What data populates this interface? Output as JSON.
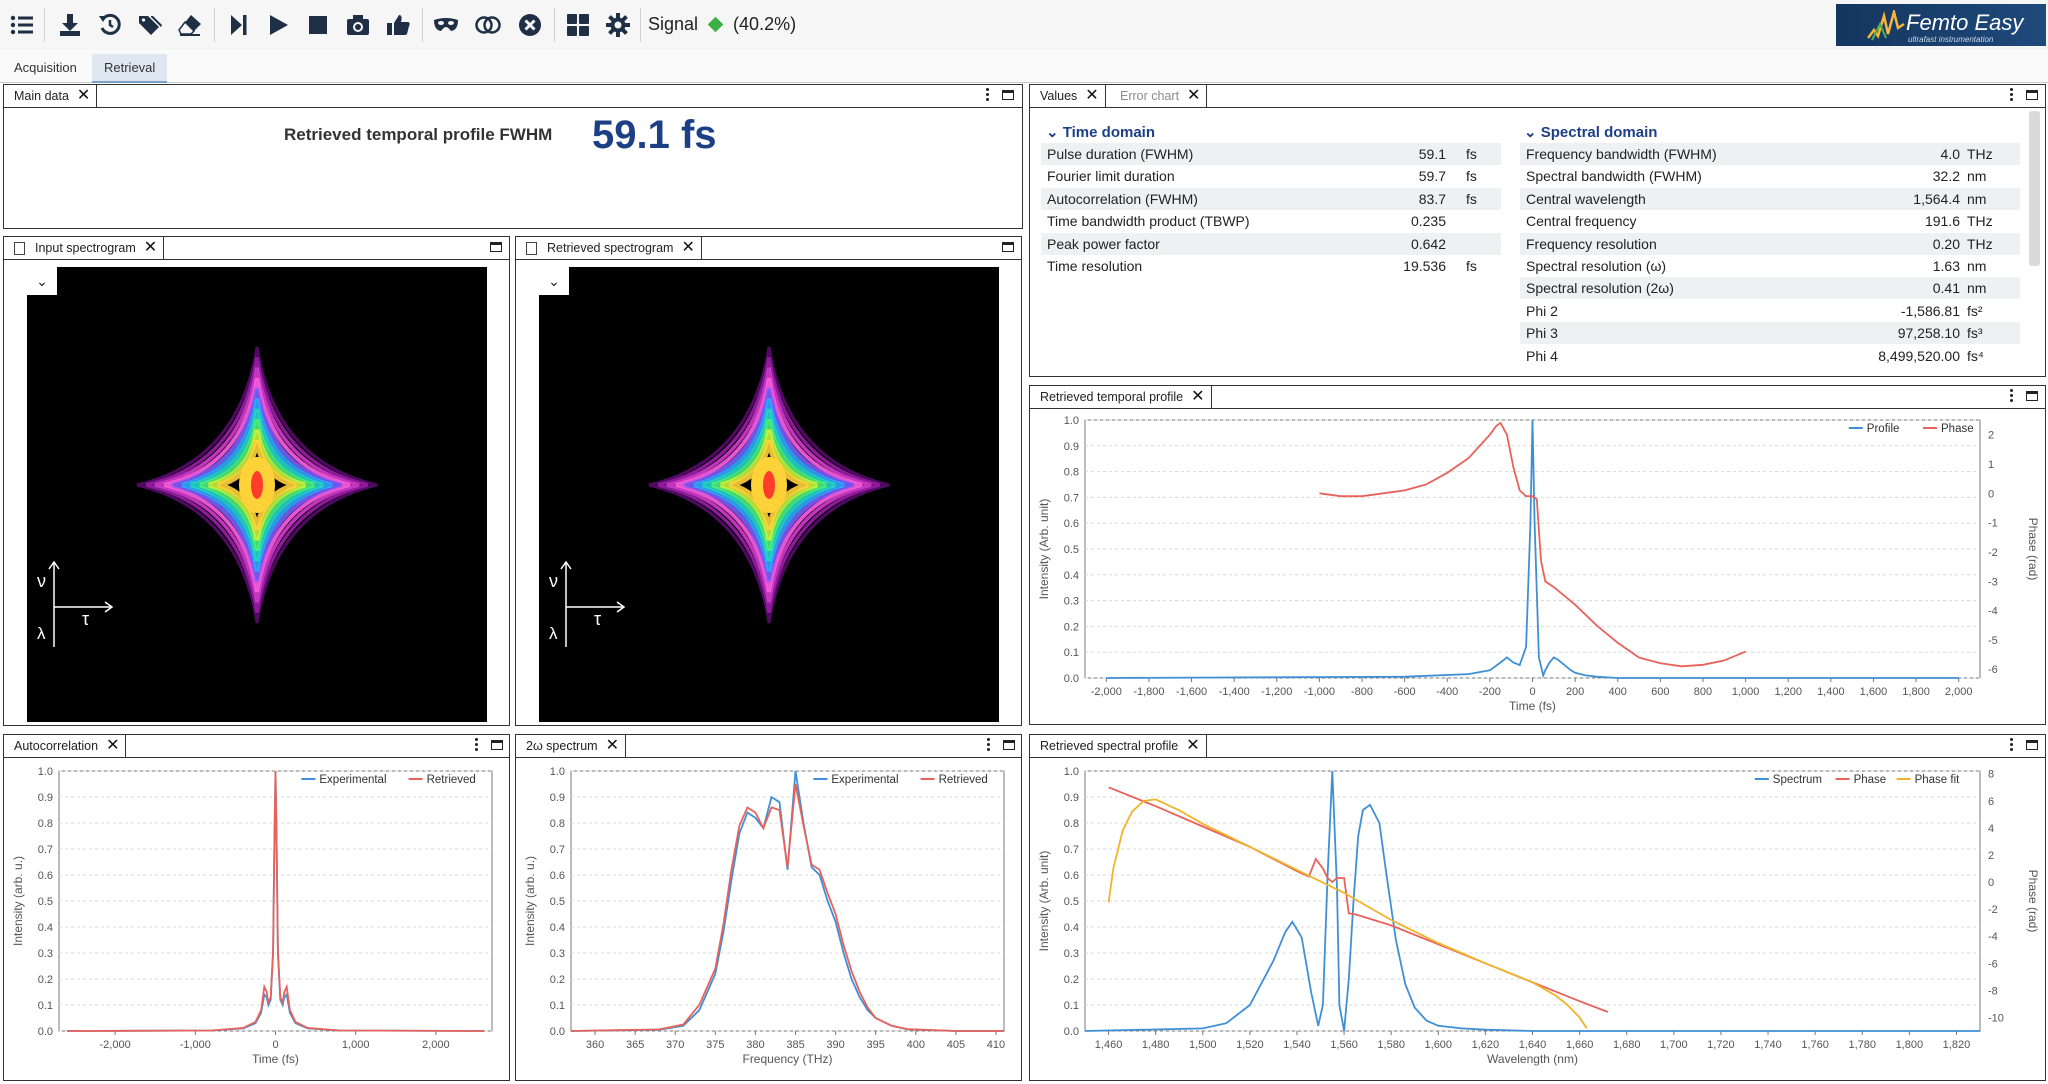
{
  "toolbar": {
    "icons": [
      "list-icon",
      "download-icon",
      "reset-icon",
      "tags-icon",
      "eraser-icon",
      "step-forward-icon",
      "play-icon",
      "stop-icon",
      "camera-icon",
      "thumbs-up-icon",
      "mask-icon",
      "toggle-icon",
      "close-circle-icon",
      "grid-icon",
      "gear-icon"
    ],
    "signal_label": "Signal",
    "signal_value": "(40.2%)",
    "signal_color": "#3cb043"
  },
  "logo": {
    "text": "Femto Easy",
    "subtitle": "ultrafast instrumentation"
  },
  "tabs": [
    {
      "label": "Acquisition"
    },
    {
      "label": "Retrieval"
    }
  ],
  "panels": {
    "main": {
      "tab": "Main data",
      "label": "Retrieved temporal profile FWHM",
      "value": "59.1 fs"
    },
    "input_spec": {
      "tab": "Input spectrogram",
      "nu": "ν",
      "lambda": "λ",
      "tau": "τ"
    },
    "retr_spec": {
      "tab": "Retrieved spectrogram",
      "nu": "ν",
      "lambda": "λ",
      "tau": "τ"
    },
    "values": {
      "tabs": [
        "Values",
        "Error chart"
      ],
      "time_title": "Time domain",
      "spec_title": "Spectral domain",
      "time_rows": [
        {
          "name": "Pulse duration (FWHM)",
          "value": "59.1",
          "unit": "fs"
        },
        {
          "name": "Fourier limit duration",
          "value": "59.7",
          "unit": "fs"
        },
        {
          "name": "Autocorrelation (FWHM)",
          "value": "83.7",
          "unit": "fs"
        },
        {
          "name": "Time bandwidth product (TBWP)",
          "value": "0.235",
          "unit": ""
        },
        {
          "name": "Peak power factor",
          "value": "0.642",
          "unit": ""
        },
        {
          "name": "Time resolution",
          "value": "19.536",
          "unit": "fs"
        }
      ],
      "spec_rows": [
        {
          "name": "Frequency bandwidth (FWHM)",
          "value": "4.0",
          "unit": "THz"
        },
        {
          "name": "Spectral bandwidth (FWHM)",
          "value": "32.2",
          "unit": "nm"
        },
        {
          "name": "Central wavelength",
          "value": "1,564.4",
          "unit": "nm"
        },
        {
          "name": "Central frequency",
          "value": "191.6",
          "unit": "THz"
        },
        {
          "name": "Frequency resolution",
          "value": "0.20",
          "unit": "THz"
        },
        {
          "name": "Spectral resolution (ω)",
          "value": "1.63",
          "unit": "nm"
        },
        {
          "name": "Spectral resolution (2ω)",
          "value": "0.41",
          "unit": "nm"
        },
        {
          "name": "Phi 2",
          "value": "-1,586.81",
          "unit": "fs²"
        },
        {
          "name": "Phi 3",
          "value": "97,258.10",
          "unit": "fs³"
        },
        {
          "name": "Phi 4",
          "value": "8,499,520.00",
          "unit": "fs⁴"
        }
      ]
    },
    "temporal": {
      "tab": "Retrieved temporal profile"
    },
    "autocorr": {
      "tab": "Autocorrelation"
    },
    "spectrum2w": {
      "tab": "2ω spectrum"
    },
    "spectral": {
      "tab": "Retrieved spectral profile"
    }
  },
  "chart_data": [
    {
      "id": "temporal",
      "type": "line",
      "xlabel": "Time (fs)",
      "ylabel": "Intensity (Arb. unit)",
      "y2label": "Phase (rad)",
      "xlim": [
        -2100,
        2100
      ],
      "ylim": [
        0,
        1.0
      ],
      "y2lim": [
        -6.3,
        2.5
      ],
      "xticks": [
        -2000,
        -1800,
        -1600,
        -1400,
        -1200,
        -1000,
        -800,
        -600,
        -400,
        -200,
        0,
        200,
        400,
        600,
        800,
        1000,
        1200,
        1400,
        1600,
        1800,
        2000
      ],
      "xticklabels": [
        "-2,000",
        "-1,800",
        "-1,600",
        "-1,400",
        "-1,200",
        "-1,000",
        "-800",
        "-600",
        "-400",
        "-200",
        "0",
        "200",
        "400",
        "600",
        "800",
        "1,000",
        "1,200",
        "1,400",
        "1,600",
        "1,800",
        "2,000"
      ],
      "yticks": [
        0,
        0.1,
        0.2,
        0.3,
        0.4,
        0.5,
        0.6,
        0.7,
        0.8,
        0.9,
        1.0
      ],
      "yticklabels": [
        "0.0",
        "0.1",
        "0.2",
        "0.3",
        "0.4",
        "0.5",
        "0.6",
        "0.7",
        "0.8",
        "0.9",
        "1.0"
      ],
      "y2ticks": [
        2,
        1,
        0,
        -1,
        -2,
        -3,
        -4,
        -5,
        -6
      ],
      "y2ticklabels": [
        "2",
        "1",
        "0",
        "-1",
        "-2",
        "-3",
        "-4",
        "-5",
        "-6"
      ],
      "grid": true,
      "legend": "top-right",
      "series": [
        {
          "name": "Profile",
          "color": "#3f8fd6",
          "axis": "y",
          "x": [
            -2000,
            -600,
            -300,
            -200,
            -150,
            -120,
            -90,
            -60,
            -30,
            -10,
            0,
            10,
            30,
            50,
            60,
            80,
            100,
            120,
            150,
            180,
            200,
            250,
            300,
            400,
            600,
            2000
          ],
          "values": [
            0,
            0.005,
            0.015,
            0.03,
            0.06,
            0.08,
            0.06,
            0.05,
            0.12,
            0.6,
            1.0,
            0.6,
            0.08,
            0.01,
            0.03,
            0.06,
            0.08,
            0.07,
            0.05,
            0.03,
            0.02,
            0.01,
            0.005,
            0,
            0,
            0
          ]
        },
        {
          "name": "Phase",
          "color": "#e8625a",
          "axis": "y2",
          "x": [
            -1000,
            -900,
            -800,
            -700,
            -600,
            -500,
            -400,
            -300,
            -250,
            -200,
            -170,
            -150,
            -120,
            -90,
            -60,
            -30,
            -10,
            0,
            20,
            40,
            60,
            80,
            100,
            150,
            200,
            300,
            400,
            500,
            600,
            700,
            800,
            900,
            1000
          ],
          "values": [
            0,
            -0.1,
            -0.1,
            0,
            0.1,
            0.3,
            0.7,
            1.2,
            1.6,
            2.0,
            2.3,
            2.4,
            2.0,
            0.9,
            0.1,
            -0.1,
            -0.1,
            -0.1,
            -0.2,
            -2.3,
            -3.0,
            -3.1,
            -3.2,
            -3.5,
            -3.8,
            -4.5,
            -5.1,
            -5.6,
            -5.8,
            -5.9,
            -5.85,
            -5.7,
            -5.4
          ]
        }
      ]
    },
    {
      "id": "autocorr",
      "type": "line",
      "xlabel": "Time (fs)",
      "ylabel": "Intensity (arb. u.)",
      "xlim": [
        -2700,
        2700
      ],
      "ylim": [
        0,
        1.0
      ],
      "xticks": [
        -2000,
        -1000,
        0,
        1000,
        2000
      ],
      "xticklabels": [
        "-2,000",
        "-1,000",
        "0",
        "1,000",
        "2,000"
      ],
      "yticks": [
        0,
        0.1,
        0.2,
        0.3,
        0.4,
        0.5,
        0.6,
        0.7,
        0.8,
        0.9,
        1.0
      ],
      "yticklabels": [
        "0.0",
        "0.1",
        "0.2",
        "0.3",
        "0.4",
        "0.5",
        "0.6",
        "0.7",
        "0.8",
        "0.9",
        "1.0"
      ],
      "grid": true,
      "legend": "top-right",
      "series": [
        {
          "name": "Experimental",
          "color": "#3f8fd6",
          "x": [
            -2600,
            -800,
            -400,
            -250,
            -180,
            -140,
            -110,
            -90,
            -60,
            -30,
            -15,
            0,
            15,
            30,
            60,
            90,
            110,
            140,
            180,
            250,
            400,
            800,
            2600
          ],
          "values": [
            0,
            0.002,
            0.01,
            0.03,
            0.07,
            0.14,
            0.13,
            0.1,
            0.12,
            0.3,
            0.7,
            1.0,
            0.7,
            0.3,
            0.12,
            0.1,
            0.13,
            0.14,
            0.07,
            0.03,
            0.01,
            0.002,
            0
          ]
        },
        {
          "name": "Retrieved",
          "color": "#e8625a",
          "x": [
            -2600,
            -800,
            -400,
            -250,
            -180,
            -140,
            -110,
            -90,
            -60,
            -30,
            -15,
            0,
            15,
            30,
            60,
            90,
            110,
            140,
            180,
            250,
            400,
            800,
            2600
          ],
          "values": [
            0,
            0.002,
            0.012,
            0.035,
            0.08,
            0.17,
            0.15,
            0.11,
            0.13,
            0.31,
            0.7,
            1.0,
            0.7,
            0.31,
            0.13,
            0.11,
            0.15,
            0.17,
            0.08,
            0.035,
            0.012,
            0.002,
            0
          ]
        }
      ]
    },
    {
      "id": "spectrum2w",
      "type": "line",
      "xlabel": "Frequency (THz)",
      "ylabel": "Intensity (arb. u.)",
      "xlim": [
        357,
        411
      ],
      "ylim": [
        0,
        1.0
      ],
      "xticks": [
        360,
        365,
        370,
        375,
        380,
        385,
        390,
        395,
        400,
        405,
        410
      ],
      "xticklabels": [
        "360",
        "365",
        "370",
        "375",
        "380",
        "385",
        "390",
        "395",
        "400",
        "405",
        "410"
      ],
      "yticks": [
        0,
        0.1,
        0.2,
        0.3,
        0.4,
        0.5,
        0.6,
        0.7,
        0.8,
        0.9,
        1.0
      ],
      "yticklabels": [
        "0.0",
        "0.1",
        "0.2",
        "0.3",
        "0.4",
        "0.5",
        "0.6",
        "0.7",
        "0.8",
        "0.9",
        "1.0"
      ],
      "grid": true,
      "legend": "top-right",
      "series": [
        {
          "name": "Experimental",
          "color": "#3f8fd6",
          "x": [
            357,
            368,
            371,
            373,
            375,
            376,
            377,
            378,
            379,
            380,
            381,
            382,
            383,
            384,
            385,
            386,
            387,
            388,
            389,
            390,
            391,
            392,
            393,
            394,
            395,
            397,
            399,
            405,
            411
          ],
          "values": [
            0,
            0.005,
            0.02,
            0.08,
            0.22,
            0.38,
            0.58,
            0.76,
            0.84,
            0.82,
            0.78,
            0.9,
            0.88,
            0.62,
            1.0,
            0.8,
            0.63,
            0.6,
            0.5,
            0.42,
            0.3,
            0.2,
            0.13,
            0.08,
            0.05,
            0.02,
            0.006,
            0,
            0
          ]
        },
        {
          "name": "Retrieved",
          "color": "#e8625a",
          "x": [
            357,
            368,
            371,
            373,
            375,
            376,
            377,
            378,
            379,
            380,
            381,
            382,
            383,
            384,
            385,
            386,
            387,
            388,
            389,
            390,
            391,
            392,
            393,
            394,
            395,
            397,
            399,
            405,
            411
          ],
          "values": [
            0,
            0.006,
            0.025,
            0.1,
            0.24,
            0.41,
            0.62,
            0.79,
            0.86,
            0.84,
            0.78,
            0.86,
            0.85,
            0.63,
            0.95,
            0.79,
            0.64,
            0.62,
            0.53,
            0.45,
            0.33,
            0.23,
            0.15,
            0.09,
            0.05,
            0.02,
            0.007,
            0,
            0
          ]
        }
      ]
    },
    {
      "id": "spectral",
      "type": "line",
      "xlabel": "Wavelength (nm)",
      "ylabel": "Intensity (Arb. unit)",
      "y2label": "Phase (rad)",
      "xlim": [
        1450,
        1830
      ],
      "ylim": [
        0,
        1.0
      ],
      "y2lim": [
        -11,
        8.2
      ],
      "xticks": [
        1460,
        1480,
        1500,
        1520,
        1540,
        1560,
        1580,
        1600,
        1620,
        1640,
        1660,
        1680,
        1700,
        1720,
        1740,
        1760,
        1780,
        1800,
        1820
      ],
      "xticklabels": [
        "1,460",
        "1,480",
        "1,500",
        "1,520",
        "1,540",
        "1,560",
        "1,580",
        "1,600",
        "1,620",
        "1,640",
        "1,660",
        "1,680",
        "1,700",
        "1,720",
        "1,740",
        "1,760",
        "1,780",
        "1,800",
        "1,820"
      ],
      "yticks": [
        0,
        0.1,
        0.2,
        0.3,
        0.4,
        0.5,
        0.6,
        0.7,
        0.8,
        0.9,
        1.0
      ],
      "yticklabels": [
        "0.0",
        "0.1",
        "0.2",
        "0.3",
        "0.4",
        "0.5",
        "0.6",
        "0.7",
        "0.8",
        "0.9",
        "1.0"
      ],
      "y2ticks": [
        8,
        6,
        4,
        2,
        0,
        -2,
        -4,
        -6,
        -8,
        -10
      ],
      "y2ticklabels": [
        "8",
        "6",
        "4",
        "2",
        "0",
        "-2",
        "-4",
        "-6",
        "-8",
        "-10"
      ],
      "grid": true,
      "legend": "top-right",
      "series": [
        {
          "name": "Spectrum",
          "color": "#3f8fd6",
          "axis": "y",
          "x": [
            1450,
            1500,
            1510,
            1520,
            1530,
            1535,
            1538,
            1542,
            1546,
            1549,
            1551,
            1553,
            1555,
            1557,
            1558,
            1560,
            1562,
            1564,
            1566,
            1568,
            1571,
            1575,
            1578,
            1582,
            1586,
            1590,
            1595,
            1600,
            1610,
            1620,
            1640,
            1660,
            1830
          ],
          "values": [
            0,
            0.01,
            0.03,
            0.1,
            0.27,
            0.38,
            0.42,
            0.36,
            0.15,
            0.02,
            0.1,
            0.6,
            1.0,
            0.55,
            0.1,
            0,
            0.2,
            0.5,
            0.75,
            0.85,
            0.87,
            0.8,
            0.6,
            0.35,
            0.18,
            0.09,
            0.04,
            0.02,
            0.01,
            0.005,
            0,
            0,
            0
          ]
        },
        {
          "name": "Phase",
          "color": "#e8625a",
          "axis": "y2",
          "x": [
            1460,
            1480,
            1500,
            1520,
            1540,
            1545,
            1548,
            1551,
            1553,
            1555,
            1557,
            1560,
            1562,
            1565,
            1580,
            1600,
            1620,
            1640,
            1660,
            1672
          ],
          "values": [
            7.0,
            5.6,
            4.1,
            2.6,
            0.8,
            0.4,
            1.7,
            1.0,
            0.3,
            0.0,
            0.3,
            0.3,
            -2.3,
            -2.4,
            -3.2,
            -4.6,
            -6.0,
            -7.4,
            -8.8,
            -9.6
          ]
        },
        {
          "name": "Phase fit",
          "color": "#f0b429",
          "axis": "y2",
          "x": [
            1460,
            1462,
            1466,
            1470,
            1475,
            1480,
            1490,
            1500,
            1520,
            1540,
            1560,
            1580,
            1600,
            1620,
            1640,
            1650,
            1655,
            1660,
            1663
          ],
          "values": [
            -1.5,
            1.0,
            3.8,
            5.2,
            6.0,
            6.1,
            5.3,
            4.3,
            2.6,
            0.9,
            -0.8,
            -2.8,
            -4.5,
            -6.0,
            -7.4,
            -8.4,
            -9.1,
            -10.0,
            -10.8
          ]
        }
      ]
    }
  ]
}
